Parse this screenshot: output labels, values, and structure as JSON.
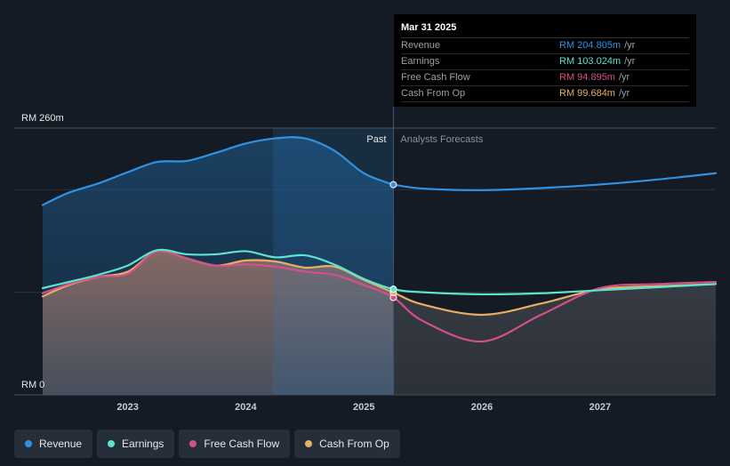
{
  "chart_data": {
    "type": "area",
    "y_axis_top_label": "RM 260m",
    "y_axis_bottom_label": "RM 0",
    "ylim": [
      0,
      260
    ],
    "xlim": [
      2022.28,
      2027.98
    ],
    "x_ticks": [
      2023,
      2024,
      2025,
      2026,
      2027
    ],
    "x_tick_labels": [
      "2023",
      "2024",
      "2025",
      "2026",
      "2027"
    ],
    "divider_x": 2025.25,
    "shade_start_x": 2024.23,
    "past_label": "Past",
    "forecast_label": "Analysts Forecasts",
    "series": [
      {
        "name": "Revenue",
        "color": "#2e93e6",
        "fill": true,
        "x": [
          2022.28,
          2022.5,
          2022.75,
          2023.0,
          2023.25,
          2023.5,
          2023.75,
          2024.0,
          2024.25,
          2024.5,
          2024.75,
          2025.0,
          2025.25
        ],
        "y": [
          185,
          197,
          206,
          217,
          227,
          228,
          236,
          245,
          250,
          250,
          238,
          216,
          204.805
        ]
      },
      {
        "name": "Revenue forecast",
        "color": "#2e93e6",
        "fill": false,
        "x": [
          2025.25,
          2025.5,
          2026.0,
          2026.5,
          2027.0,
          2027.5,
          2027.98
        ],
        "y": [
          204.805,
          201,
          199.5,
          201.5,
          205,
          210,
          216
        ]
      },
      {
        "name": "Earnings",
        "color": "#5ee3d0",
        "fill": false,
        "x": [
          2022.28,
          2022.5,
          2022.75,
          2023.0,
          2023.25,
          2023.5,
          2023.75,
          2024.0,
          2024.25,
          2024.5,
          2024.75,
          2025.0,
          2025.25,
          2025.5,
          2026.0,
          2026.5,
          2027.0,
          2027.5,
          2027.98
        ],
        "y": [
          104,
          110,
          117,
          126,
          141,
          137,
          137,
          140,
          134,
          136,
          127,
          113,
          103.024,
          100,
          98,
          99,
          102,
          105,
          108
        ]
      },
      {
        "name": "Free Cash Flow",
        "color": "#d3508c",
        "fill": false,
        "x": [
          2022.28,
          2022.5,
          2022.75,
          2023.0,
          2023.25,
          2023.5,
          2023.75,
          2024.0,
          2024.25,
          2024.5,
          2024.75,
          2025.0,
          2025.25,
          2025.5,
          2026.0,
          2026.5,
          2027.0,
          2027.5,
          2027.98
        ],
        "y": [
          99,
          108,
          115,
          118,
          140,
          133,
          126,
          127,
          125,
          120,
          117,
          107,
          94.895,
          72,
          52,
          78,
          104,
          108,
          110
        ]
      },
      {
        "name": "Cash From Op",
        "color": "#e8ae64",
        "fill": true,
        "x": [
          2022.28,
          2022.5,
          2022.75,
          2023.0,
          2023.25,
          2023.5,
          2023.75,
          2024.0,
          2024.25,
          2024.5,
          2024.75,
          2025.0,
          2025.25,
          2025.5,
          2026.0,
          2026.5,
          2027.0,
          2027.5,
          2027.98
        ],
        "y": [
          96,
          107,
          115,
          120,
          140,
          133,
          126,
          131,
          130,
          124,
          125,
          112,
          99.684,
          88,
          78,
          89,
          103,
          106,
          108
        ]
      }
    ]
  },
  "tooltip": {
    "date": "Mar 31 2025",
    "rows": [
      {
        "name": "Revenue",
        "value": "RM 204.805m",
        "unit": "/yr",
        "color": "#2e93e6"
      },
      {
        "name": "Earnings",
        "value": "RM 103.024m",
        "unit": "/yr",
        "color": "#5ee3d0"
      },
      {
        "name": "Free Cash Flow",
        "value": "RM 94.895m",
        "unit": "/yr",
        "color": "#d3508c"
      },
      {
        "name": "Cash From Op",
        "value": "RM 99.684m",
        "unit": "/yr",
        "color": "#e8ae64"
      }
    ]
  },
  "legend": [
    {
      "label": "Revenue",
      "color": "#2e93e6"
    },
    {
      "label": "Earnings",
      "color": "#5ee3d0"
    },
    {
      "label": "Free Cash Flow",
      "color": "#d3508c"
    },
    {
      "label": "Cash From Op",
      "color": "#e8ae64"
    }
  ]
}
